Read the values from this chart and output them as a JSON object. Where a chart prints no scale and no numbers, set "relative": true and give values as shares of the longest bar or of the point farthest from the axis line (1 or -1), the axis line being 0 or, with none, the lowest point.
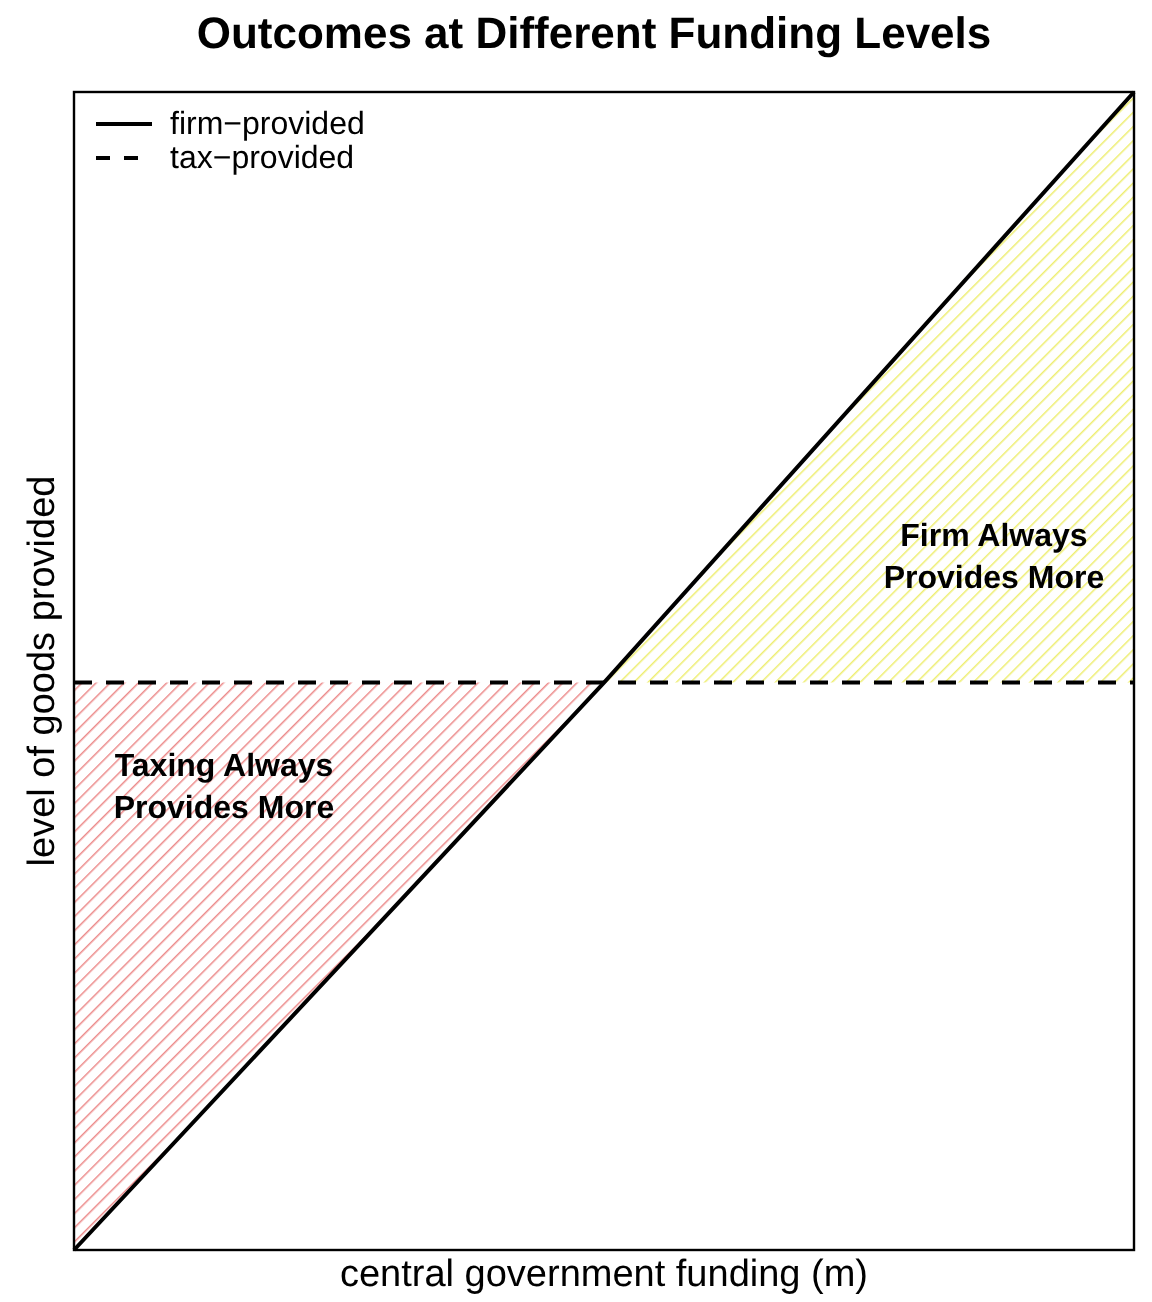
{
  "chart_data": {
    "type": "line",
    "title": "Outcomes at Different Funding Levels",
    "xlabel": "central government funding (m)",
    "ylabel": "level of goods provided",
    "categories": [
      null,
      null,
      null
    ],
    "relative": true,
    "legend": "top left",
    "series": [
      {
        "name": "firm−provided",
        "color": "#000000",
        "values": [
          0,
          0.49,
          1
        ],
        "line_style": "solid"
      },
      {
        "name": "tax−provided",
        "color": "#000000",
        "values": [
          0.49,
          0.49,
          0.49
        ],
        "line_style": "dashed"
      }
    ],
    "annotations": [
      "Taxing Always Provides More",
      "Firm Always Provides More"
    ]
  }
}
